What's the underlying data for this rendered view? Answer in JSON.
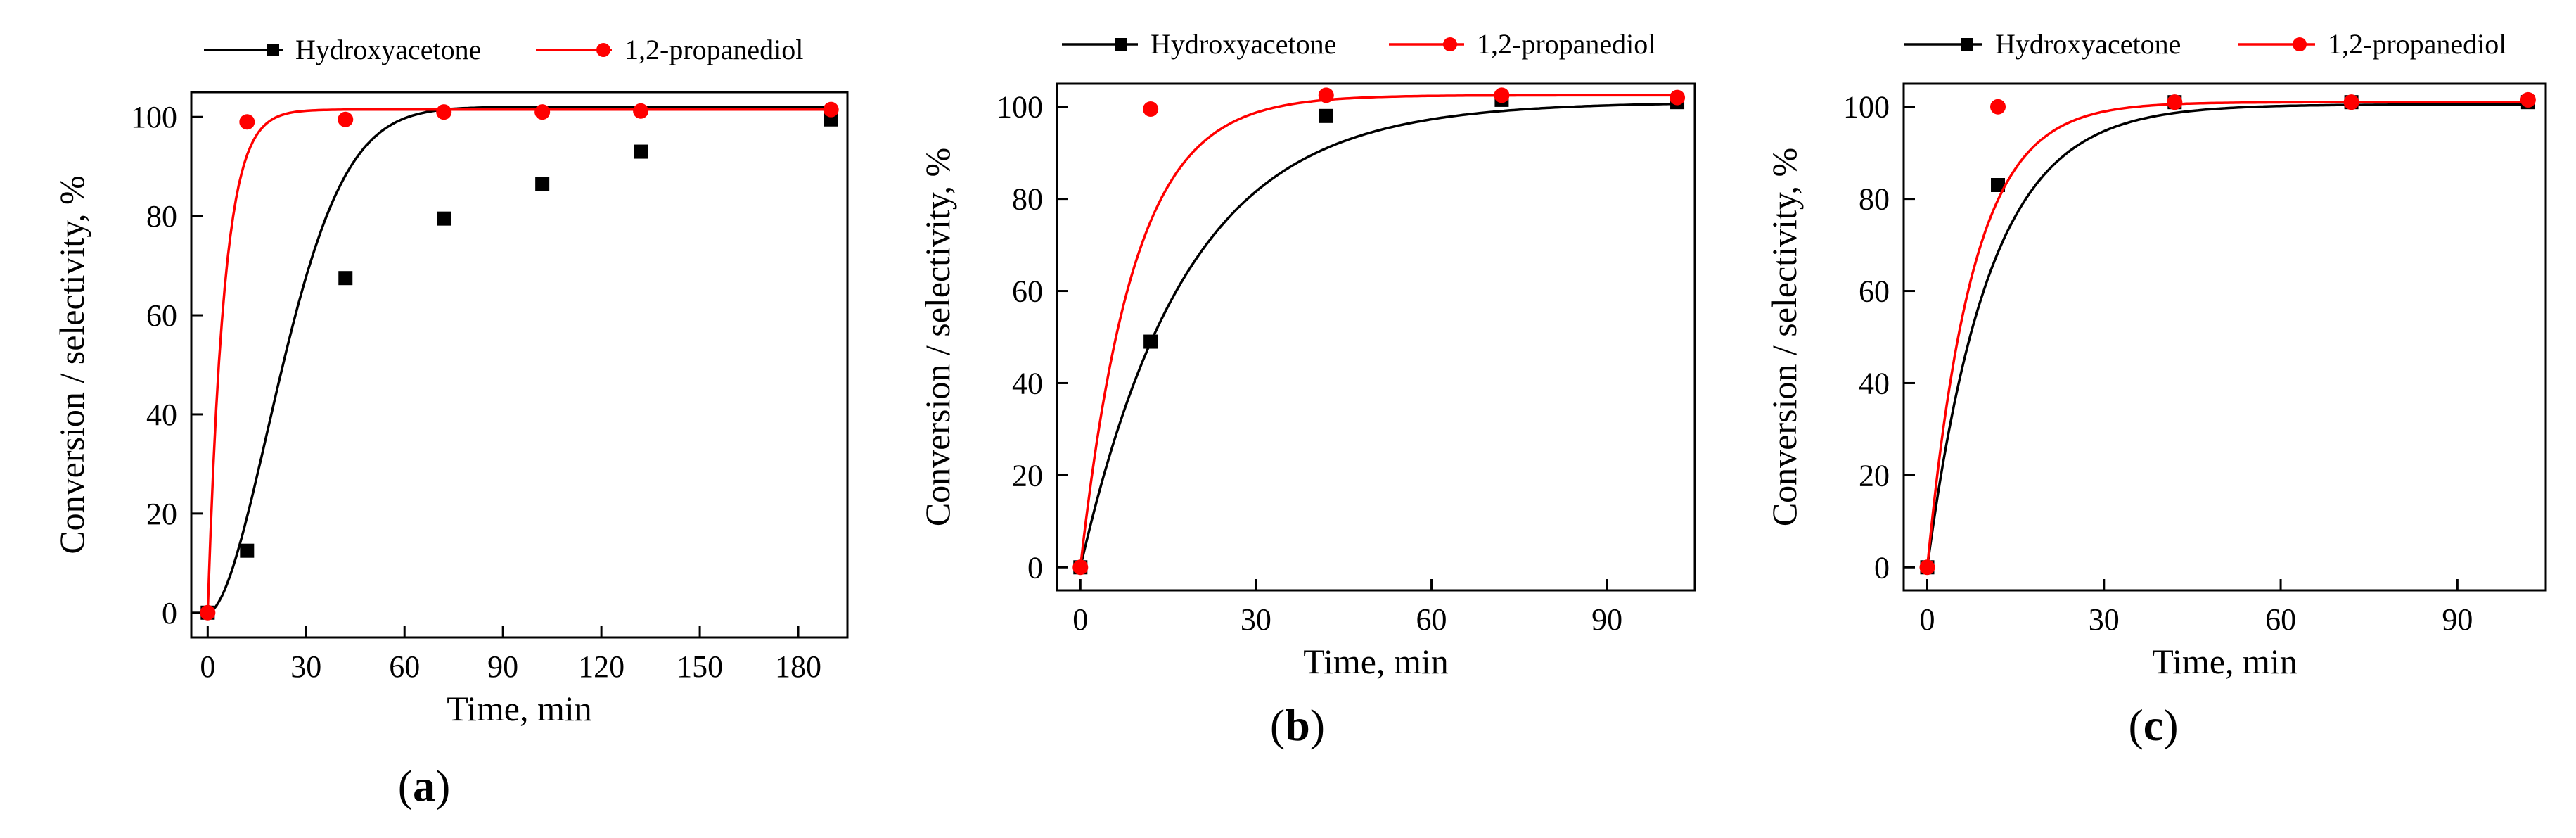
{
  "colors": {
    "hydroxyacetone": "#000000",
    "propanediol": "#ff0000"
  },
  "chart_data": [
    {
      "type": "scatter",
      "panel_label": "a",
      "xlabel": "Time, min",
      "ylabel": "Conversion / selectivity, %",
      "xlim": [
        -5,
        195
      ],
      "ylim": [
        -5,
        105
      ],
      "xticks": [
        0,
        30,
        60,
        90,
        120,
        150,
        180
      ],
      "yticks": [
        0,
        20,
        40,
        60,
        80,
        100
      ],
      "series": [
        {
          "name": "Hydroxyacetone",
          "marker": "square",
          "color": "#000000",
          "points": [
            [
              0,
              0
            ],
            [
              12,
              12.5
            ],
            [
              42,
              67.5
            ],
            [
              72,
              79.5
            ],
            [
              102,
              86.5
            ],
            [
              132,
              93
            ],
            [
              190,
              99.5
            ]
          ],
          "fit": {
            "model": "sigmoid",
            "asymptote": 102,
            "k": 0.035,
            "n": 1.8
          }
        },
        {
          "name": "1,2-propanediol",
          "marker": "circle",
          "color": "#ff0000",
          "points": [
            [
              0,
              0
            ],
            [
              12,
              99
            ],
            [
              42,
              99.5
            ],
            [
              72,
              101
            ],
            [
              102,
              101
            ],
            [
              132,
              101.2
            ],
            [
              190,
              101.5
            ]
          ],
          "fit": {
            "model": "exponential",
            "asymptote": 101.5,
            "k": 0.2
          }
        }
      ]
    },
    {
      "type": "scatter",
      "panel_label": "b",
      "xlabel": "Time, min",
      "ylabel": "Conversion / selectivity, %",
      "xlim": [
        -4,
        105
      ],
      "ylim": [
        -5,
        105
      ],
      "xticks": [
        0,
        30,
        60,
        90
      ],
      "yticks": [
        0,
        20,
        40,
        60,
        80,
        100
      ],
      "series": [
        {
          "name": "Hydroxyacetone",
          "marker": "square",
          "color": "#000000",
          "points": [
            [
              0,
              0
            ],
            [
              12,
              49
            ],
            [
              42,
              98
            ],
            [
              72,
              101.5
            ],
            [
              102,
              101
            ]
          ],
          "fit": {
            "model": "exponential",
            "asymptote": 101,
            "k": 0.055
          }
        },
        {
          "name": "1,2-propanediol",
          "marker": "circle",
          "color": "#ff0000",
          "points": [
            [
              0,
              0
            ],
            [
              12,
              99.5
            ],
            [
              42,
              102.5
            ],
            [
              72,
              102.5
            ],
            [
              102,
              102
            ]
          ],
          "fit": {
            "model": "exponential",
            "asymptote": 102.5,
            "k": 0.11
          }
        }
      ]
    },
    {
      "type": "scatter",
      "panel_label": "c",
      "xlabel": "Time, min",
      "ylabel": "Conversion / selectivity, %",
      "xlim": [
        -4,
        105
      ],
      "ylim": [
        -5,
        105
      ],
      "xticks": [
        0,
        30,
        60,
        90
      ],
      "yticks": [
        0,
        20,
        40,
        60,
        80,
        100
      ],
      "series": [
        {
          "name": "Hydroxyacetone",
          "marker": "square",
          "color": "#000000",
          "points": [
            [
              0,
              0
            ],
            [
              12,
              83
            ],
            [
              42,
              101
            ],
            [
              72,
              101
            ],
            [
              102,
              101
            ]
          ],
          "fit": {
            "model": "exponential",
            "asymptote": 100.5,
            "k": 0.095
          }
        },
        {
          "name": "1,2-propanediol",
          "marker": "circle",
          "color": "#ff0000",
          "points": [
            [
              0,
              0
            ],
            [
              12,
              100
            ],
            [
              42,
              101
            ],
            [
              72,
              101
            ],
            [
              102,
              101.5
            ]
          ],
          "fit": {
            "model": "exponential",
            "asymptote": 101,
            "k": 0.13
          }
        }
      ]
    }
  ]
}
